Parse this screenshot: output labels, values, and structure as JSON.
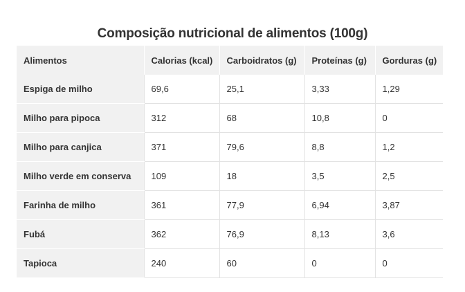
{
  "title": "Composição nutricional de alimentos (100g)",
  "table": {
    "headers": [
      "Alimentos",
      "Calorias (kcal)",
      "Carboidratos (g)",
      "Proteínas (g)",
      "Gorduras (g)"
    ],
    "rows": [
      [
        "Espiga de milho",
        "69,6",
        "25,1",
        "3,33",
        "1,29"
      ],
      [
        "Milho para pipoca",
        "312",
        "68",
        "10,8",
        "0"
      ],
      [
        "Milho para canjica",
        "371",
        "79,6",
        "8,8",
        "1,2"
      ],
      [
        "Milho verde em conserva",
        "109",
        "18",
        "3,5",
        "2,5"
      ],
      [
        "Farinha de milho",
        "361",
        "77,9",
        "6,94",
        "3,87"
      ],
      [
        "Fubá",
        "362",
        "76,9",
        "8,13",
        "3,6"
      ],
      [
        "Tapioca",
        "240",
        "60",
        "0",
        "0"
      ]
    ]
  },
  "colors": {
    "header_bg": "#f1f1f1",
    "text": "#333333",
    "border": "#e2e2e2"
  }
}
